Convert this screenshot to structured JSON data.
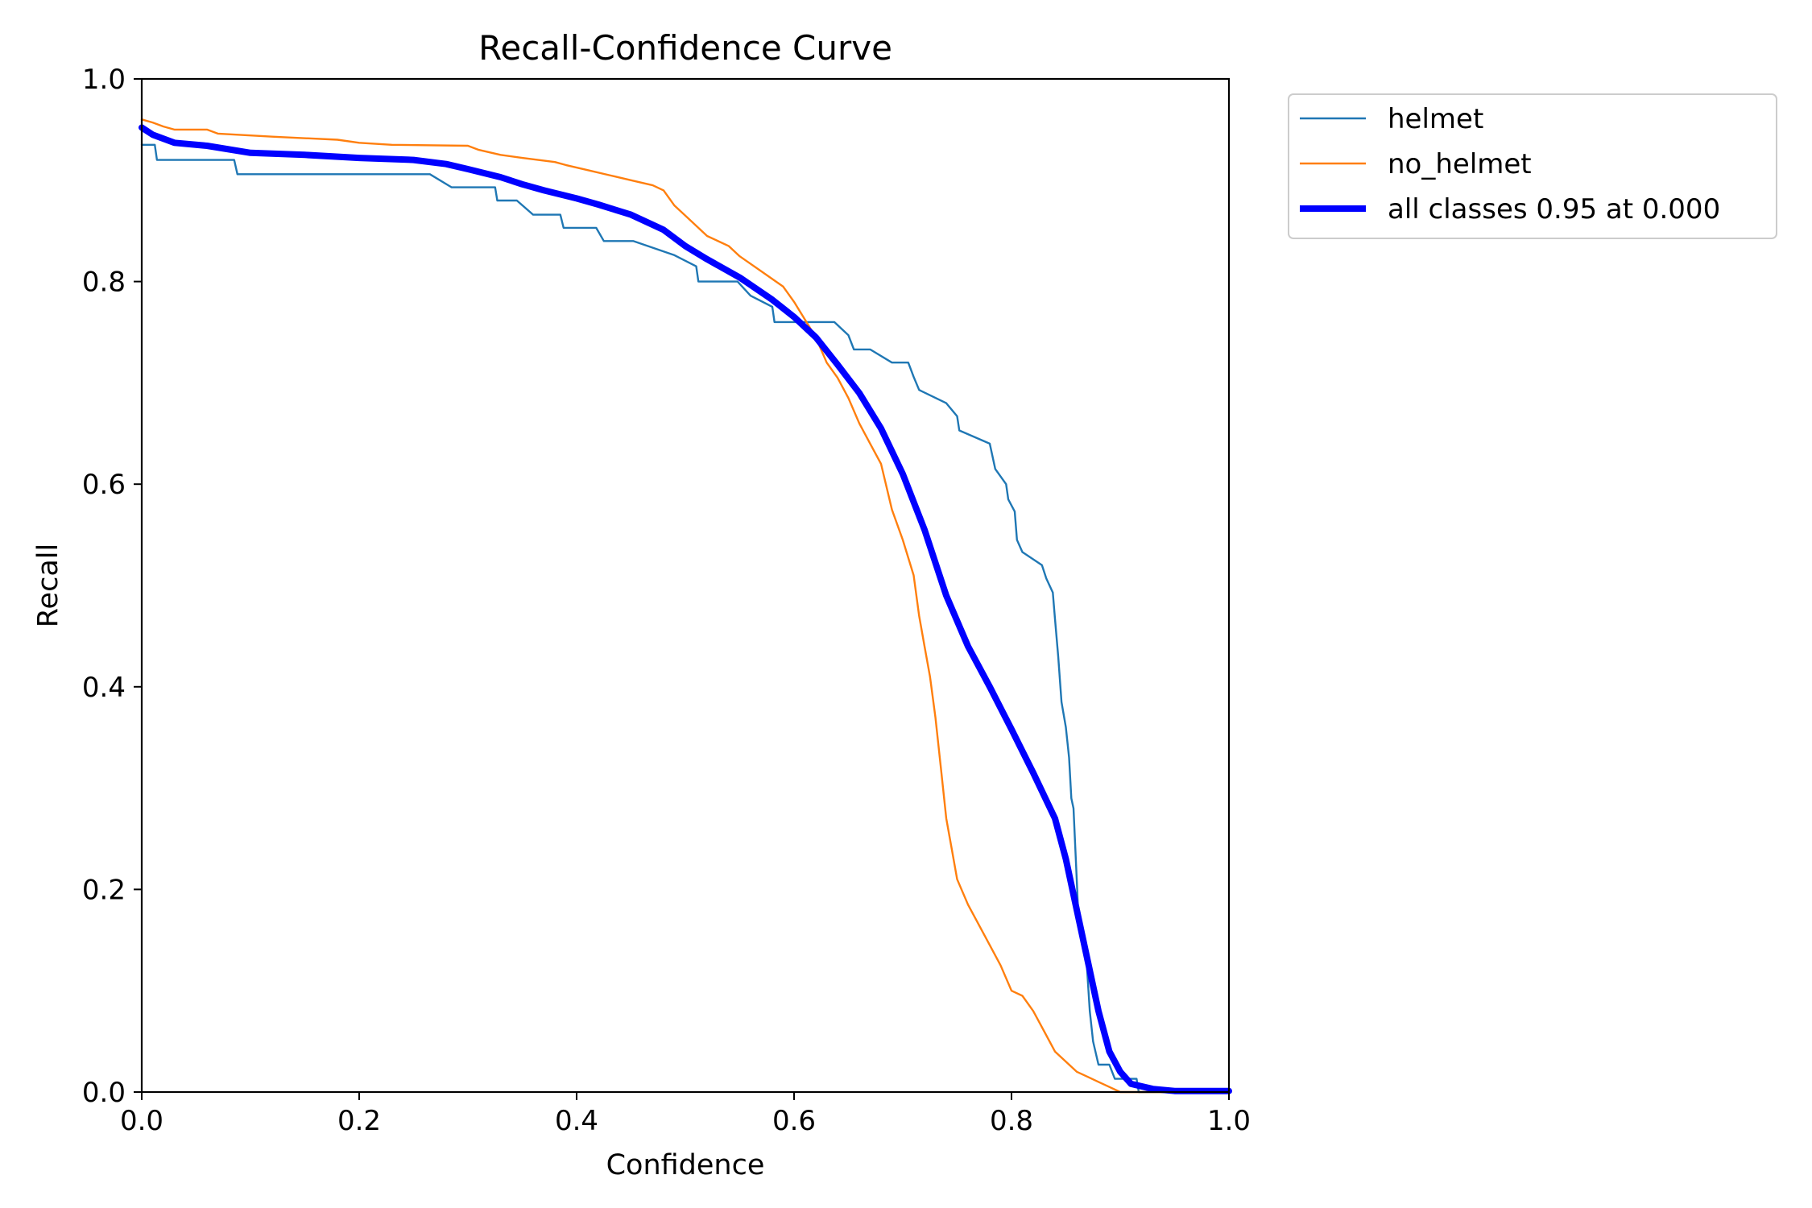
{
  "chart_data": {
    "type": "line",
    "title": "Recall-Confidence Curve",
    "xlabel": "Confidence",
    "ylabel": "Recall",
    "xlim": [
      0,
      1
    ],
    "ylim": [
      0,
      1
    ],
    "grid": false,
    "legend_position": "outside-top-right",
    "x_ticks": [
      0.0,
      0.2,
      0.4,
      0.6,
      0.8,
      1.0
    ],
    "x_tick_labels": [
      "0.0",
      "0.2",
      "0.4",
      "0.6",
      "0.8",
      "1.0"
    ],
    "y_ticks": [
      0.0,
      0.2,
      0.4,
      0.6,
      0.8,
      1.0
    ],
    "y_tick_labels": [
      "0.0",
      "0.2",
      "0.4",
      "0.6",
      "0.8",
      "1.0"
    ],
    "series": [
      {
        "name": "helmet",
        "legend_label": "helmet",
        "color": "#1f77b4",
        "style": "thin",
        "points": [
          [
            0.0,
            0.935
          ],
          [
            0.012,
            0.935
          ],
          [
            0.014,
            0.92
          ],
          [
            0.085,
            0.92
          ],
          [
            0.088,
            0.906
          ],
          [
            0.265,
            0.906
          ],
          [
            0.285,
            0.893
          ],
          [
            0.325,
            0.893
          ],
          [
            0.327,
            0.88
          ],
          [
            0.345,
            0.88
          ],
          [
            0.36,
            0.866
          ],
          [
            0.385,
            0.866
          ],
          [
            0.388,
            0.853
          ],
          [
            0.418,
            0.853
          ],
          [
            0.425,
            0.84
          ],
          [
            0.452,
            0.84
          ],
          [
            0.49,
            0.826
          ],
          [
            0.51,
            0.815
          ],
          [
            0.512,
            0.8
          ],
          [
            0.548,
            0.8
          ],
          [
            0.56,
            0.786
          ],
          [
            0.58,
            0.775
          ],
          [
            0.582,
            0.76
          ],
          [
            0.637,
            0.76
          ],
          [
            0.65,
            0.747
          ],
          [
            0.655,
            0.733
          ],
          [
            0.67,
            0.733
          ],
          [
            0.69,
            0.72
          ],
          [
            0.705,
            0.72
          ],
          [
            0.71,
            0.706
          ],
          [
            0.715,
            0.693
          ],
          [
            0.74,
            0.68
          ],
          [
            0.75,
            0.667
          ],
          [
            0.752,
            0.653
          ],
          [
            0.78,
            0.64
          ],
          [
            0.785,
            0.615
          ],
          [
            0.795,
            0.6
          ],
          [
            0.797,
            0.585
          ],
          [
            0.803,
            0.573
          ],
          [
            0.805,
            0.545
          ],
          [
            0.81,
            0.533
          ],
          [
            0.828,
            0.52
          ],
          [
            0.832,
            0.507
          ],
          [
            0.838,
            0.493
          ],
          [
            0.84,
            0.467
          ],
          [
            0.843,
            0.43
          ],
          [
            0.846,
            0.385
          ],
          [
            0.85,
            0.36
          ],
          [
            0.853,
            0.33
          ],
          [
            0.855,
            0.29
          ],
          [
            0.857,
            0.28
          ],
          [
            0.86,
            0.21
          ],
          [
            0.862,
            0.16
          ],
          [
            0.868,
            0.147
          ],
          [
            0.872,
            0.08
          ],
          [
            0.875,
            0.05
          ],
          [
            0.88,
            0.027
          ],
          [
            0.89,
            0.027
          ],
          [
            0.895,
            0.013
          ],
          [
            0.915,
            0.013
          ],
          [
            0.917,
            0.0
          ],
          [
            1.0,
            0.0
          ]
        ]
      },
      {
        "name": "no_helmet",
        "legend_label": "no_helmet",
        "color": "#ff7f0e",
        "style": "thin",
        "points": [
          [
            0.0,
            0.96
          ],
          [
            0.01,
            0.957
          ],
          [
            0.02,
            0.953
          ],
          [
            0.03,
            0.95
          ],
          [
            0.06,
            0.95
          ],
          [
            0.07,
            0.946
          ],
          [
            0.12,
            0.943
          ],
          [
            0.18,
            0.94
          ],
          [
            0.2,
            0.937
          ],
          [
            0.23,
            0.935
          ],
          [
            0.3,
            0.934
          ],
          [
            0.31,
            0.93
          ],
          [
            0.33,
            0.925
          ],
          [
            0.35,
            0.922
          ],
          [
            0.38,
            0.918
          ],
          [
            0.39,
            0.915
          ],
          [
            0.41,
            0.91
          ],
          [
            0.43,
            0.905
          ],
          [
            0.45,
            0.9
          ],
          [
            0.47,
            0.895
          ],
          [
            0.48,
            0.89
          ],
          [
            0.49,
            0.875
          ],
          [
            0.5,
            0.865
          ],
          [
            0.51,
            0.855
          ],
          [
            0.52,
            0.845
          ],
          [
            0.54,
            0.835
          ],
          [
            0.55,
            0.825
          ],
          [
            0.57,
            0.81
          ],
          [
            0.59,
            0.795
          ],
          [
            0.6,
            0.78
          ],
          [
            0.62,
            0.745
          ],
          [
            0.63,
            0.72
          ],
          [
            0.64,
            0.705
          ],
          [
            0.65,
            0.685
          ],
          [
            0.66,
            0.66
          ],
          [
            0.67,
            0.64
          ],
          [
            0.68,
            0.62
          ],
          [
            0.69,
            0.575
          ],
          [
            0.7,
            0.545
          ],
          [
            0.71,
            0.51
          ],
          [
            0.715,
            0.47
          ],
          [
            0.72,
            0.44
          ],
          [
            0.725,
            0.41
          ],
          [
            0.73,
            0.37
          ],
          [
            0.735,
            0.32
          ],
          [
            0.74,
            0.27
          ],
          [
            0.745,
            0.24
          ],
          [
            0.75,
            0.21
          ],
          [
            0.76,
            0.185
          ],
          [
            0.77,
            0.165
          ],
          [
            0.78,
            0.145
          ],
          [
            0.79,
            0.125
          ],
          [
            0.8,
            0.1
          ],
          [
            0.81,
            0.095
          ],
          [
            0.82,
            0.08
          ],
          [
            0.83,
            0.06
          ],
          [
            0.84,
            0.04
          ],
          [
            0.85,
            0.03
          ],
          [
            0.86,
            0.02
          ],
          [
            0.87,
            0.015
          ],
          [
            0.88,
            0.01
          ],
          [
            0.89,
            0.005
          ],
          [
            0.9,
            0.0
          ],
          [
            1.0,
            0.0
          ]
        ]
      },
      {
        "name": "all classes",
        "legend_label": "all classes 0.95 at 0.000",
        "color": "#0000ff",
        "style": "thick",
        "points": [
          [
            0.0,
            0.952
          ],
          [
            0.01,
            0.945
          ],
          [
            0.03,
            0.937
          ],
          [
            0.06,
            0.934
          ],
          [
            0.1,
            0.927
          ],
          [
            0.15,
            0.925
          ],
          [
            0.2,
            0.922
          ],
          [
            0.25,
            0.92
          ],
          [
            0.28,
            0.916
          ],
          [
            0.3,
            0.911
          ],
          [
            0.33,
            0.903
          ],
          [
            0.35,
            0.896
          ],
          [
            0.37,
            0.89
          ],
          [
            0.4,
            0.882
          ],
          [
            0.42,
            0.876
          ],
          [
            0.45,
            0.866
          ],
          [
            0.48,
            0.851
          ],
          [
            0.5,
            0.835
          ],
          [
            0.52,
            0.822
          ],
          [
            0.55,
            0.804
          ],
          [
            0.58,
            0.782
          ],
          [
            0.6,
            0.765
          ],
          [
            0.62,
            0.745
          ],
          [
            0.64,
            0.718
          ],
          [
            0.66,
            0.69
          ],
          [
            0.68,
            0.655
          ],
          [
            0.7,
            0.61
          ],
          [
            0.72,
            0.555
          ],
          [
            0.74,
            0.49
          ],
          [
            0.76,
            0.44
          ],
          [
            0.78,
            0.4
          ],
          [
            0.8,
            0.358
          ],
          [
            0.82,
            0.315
          ],
          [
            0.84,
            0.27
          ],
          [
            0.85,
            0.23
          ],
          [
            0.86,
            0.18
          ],
          [
            0.87,
            0.13
          ],
          [
            0.88,
            0.08
          ],
          [
            0.89,
            0.04
          ],
          [
            0.9,
            0.02
          ],
          [
            0.91,
            0.008
          ],
          [
            0.93,
            0.003
          ],
          [
            0.95,
            0.001
          ],
          [
            1.0,
            0.001
          ]
        ]
      }
    ]
  }
}
